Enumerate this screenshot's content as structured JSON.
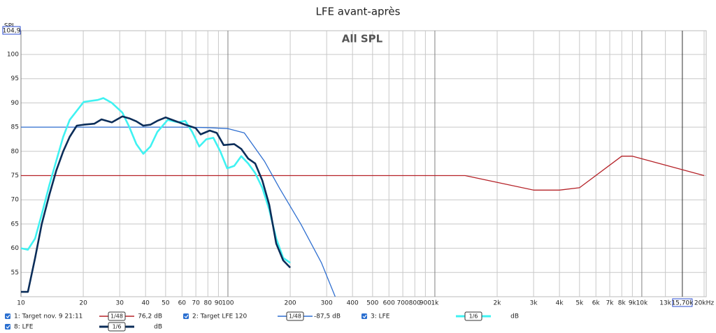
{
  "chart_data": {
    "type": "line",
    "title": "LFE avant-après",
    "overlay_label": "All SPL",
    "y_axis_label": "SPL",
    "log_x": true,
    "grid": true,
    "xlim": [
      10,
      20000
    ],
    "ylim": [
      50,
      104.9
    ],
    "y_top_label": {
      "value": 104.9,
      "label": "104,9"
    },
    "x_cursor": {
      "value": 15700,
      "label": "15,70k"
    },
    "yticks": [
      55,
      60,
      65,
      70,
      75,
      80,
      85,
      90,
      95,
      100
    ],
    "xticks": [
      10,
      20,
      30,
      40,
      50,
      60,
      70,
      80,
      90,
      100,
      200,
      300,
      400,
      500,
      600,
      700,
      800,
      {
        "value": 900,
        "label": "900"
      },
      {
        "value": 1000,
        "label": "1k"
      },
      {
        "value": 2000,
        "label": "2k"
      },
      {
        "value": 3000,
        "label": "3k"
      },
      {
        "value": 4000,
        "label": "4k"
      },
      {
        "value": 5000,
        "label": "5k"
      },
      {
        "value": 6000,
        "label": "6k"
      },
      {
        "value": 7000,
        "label": "7k"
      },
      {
        "value": 8000,
        "label": "8k"
      },
      {
        "value": 9000,
        "label": "9k"
      },
      {
        "value": 10000,
        "label": "10k"
      },
      {
        "value": 13000,
        "label": "13k"
      },
      {
        "value": 20000,
        "label": "20kHz"
      }
    ],
    "series": [
      {
        "name": "1: Target nov. 9 21:11",
        "color": "#b52228",
        "smoothing": "1/48",
        "legend_value": "76,2 dB",
        "x": [
          10,
          1400,
          3000,
          4000,
          5000,
          8000,
          9000,
          20000
        ],
        "values": [
          75,
          75,
          72,
          72,
          72.5,
          79,
          79,
          75
        ]
      },
      {
        "name": "2: Target LFE 120",
        "color": "#2f6fd0",
        "smoothing": "1/48",
        "legend_value": "-87,5 dB",
        "x": [
          10,
          60,
          80,
          100,
          120,
          150,
          178,
          225,
          283,
          330
        ],
        "values": [
          85,
          85,
          84.9,
          84.7,
          83.8,
          78,
          72.3,
          65,
          57,
          50
        ]
      },
      {
        "name": "3: LFE",
        "color": "#3ff2f2",
        "smoothing": "1/6",
        "legend_value": "dB",
        "x": [
          10,
          10.8,
          11.7,
          12.6,
          13.7,
          14.8,
          16,
          17.2,
          20.1,
          23.5,
          25,
          27.5,
          30.9,
          33.4,
          36.1,
          39,
          42.2,
          45.6,
          51.2,
          57.5,
          62.2,
          67.2,
          72.7,
          78.6,
          85,
          91.8,
          99.2,
          107.3,
          116,
          125.3,
          135.5,
          146.5,
          158.3,
          171.1,
          185,
          200
        ],
        "values": [
          60,
          59.7,
          62,
          67,
          73,
          78,
          83,
          86.5,
          90.2,
          90.6,
          91,
          90,
          88,
          85,
          81.5,
          79.5,
          81,
          84,
          86.5,
          86,
          86.3,
          84,
          81,
          82.5,
          82.8,
          80,
          76.5,
          77,
          79,
          77.5,
          75.5,
          72.5,
          68,
          62,
          58,
          57
        ]
      },
      {
        "name": "8: LFE",
        "color": "#0b2d59",
        "smoothing": "1/6",
        "legend_value": "dB",
        "x": [
          10,
          10.8,
          11.7,
          12.6,
          13.7,
          14.8,
          16,
          17.2,
          18.6,
          20.1,
          22.6,
          24.5,
          27.5,
          30.9,
          33.4,
          36.1,
          39,
          42.2,
          45.6,
          50,
          55.4,
          62.2,
          69.9,
          73.8,
          81.7,
          88.3,
          95.4,
          107.3,
          116,
          125.3,
          135.5,
          146.5,
          158.3,
          171.1,
          185,
          200
        ],
        "values": [
          51,
          51,
          58,
          65,
          71,
          76,
          80,
          83,
          85.3,
          85.5,
          85.7,
          86.6,
          86,
          87.2,
          86.8,
          86.2,
          85.3,
          85.5,
          86.3,
          87,
          86.3,
          85.5,
          84.8,
          83.5,
          84.3,
          83.8,
          81.3,
          81.5,
          80.5,
          78.5,
          77.5,
          74,
          69,
          61,
          57.5,
          56
        ]
      }
    ]
  }
}
